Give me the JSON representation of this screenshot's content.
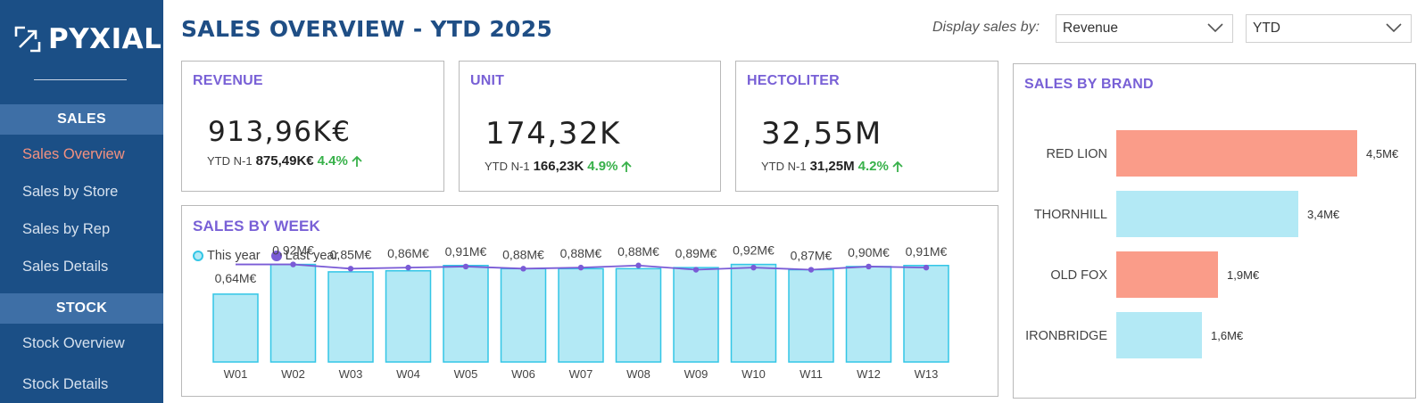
{
  "brand": {
    "name": "PYXIAL"
  },
  "sidebar": {
    "sections": [
      {
        "title": "SALES",
        "items": [
          "Sales Overview",
          "Sales by Store",
          "Sales by Rep",
          "Sales Details"
        ]
      },
      {
        "title": "STOCK",
        "items": [
          "Stock Overview",
          "Stock Details"
        ]
      }
    ],
    "active_item": "Sales Overview"
  },
  "header": {
    "title": "SALES OVERVIEW - YTD 2025",
    "display_label": "Display sales by:",
    "measure_select": "Revenue",
    "period_select": "YTD"
  },
  "kpis": [
    {
      "title": "REVENUE",
      "value": "913,96K€",
      "prev_label": "YTD N-1",
      "prev_value": "875,49K€",
      "change": "4.4%",
      "trend": "up"
    },
    {
      "title": "UNIT",
      "value": "174,32K",
      "prev_label": "YTD N-1",
      "prev_value": "166,23K",
      "change": "4.9%",
      "trend": "up"
    },
    {
      "title": "HECTOLITER",
      "value": "32,55M",
      "prev_label": "YTD N-1",
      "prev_value": "31,25M",
      "change": "4.2%",
      "trend": "up"
    }
  ],
  "colors": {
    "sidebar_bg": "#1b4f86",
    "section_bg": "#3e6fa6",
    "accent_title": "#7860d6",
    "this_year": "#b3e9f5",
    "this_year_stroke": "#33c6e6",
    "last_year": "#7a5bd6",
    "positive": "#38b14a",
    "brand_salmon": "#fa9c89",
    "brand_cyan": "#b3e9f5"
  },
  "chart_data": [
    {
      "type": "bar",
      "title": "SALES BY WEEK",
      "categories": [
        "W01",
        "W02",
        "W03",
        "W04",
        "W05",
        "W06",
        "W07",
        "W08",
        "W09",
        "W10",
        "W11",
        "W12",
        "W13"
      ],
      "series": [
        {
          "name": "This year",
          "kind": "bar",
          "values": [
            0.64,
            0.92,
            0.85,
            0.86,
            0.91,
            0.88,
            0.88,
            0.88,
            0.89,
            0.92,
            0.87,
            0.9,
            0.91
          ]
        },
        {
          "name": "Last year",
          "kind": "line",
          "values": [
            0.92,
            0.92,
            0.88,
            0.89,
            0.9,
            0.88,
            0.89,
            0.91,
            0.87,
            0.89,
            0.87,
            0.9,
            0.89
          ]
        }
      ],
      "data_labels": [
        "0,64M€",
        "0,92M€",
        "0,85M€",
        "0,86M€",
        "0,91M€",
        "0,88M€",
        "0,88M€",
        "0,88M€",
        "0,89M€",
        "0,92M€",
        "0,87M€",
        "0,90M€",
        "0,91M€"
      ],
      "ylim": [
        0,
        0.95
      ],
      "legend": "top-left",
      "grid": false
    },
    {
      "type": "bar",
      "orientation": "horizontal",
      "title": "SALES BY BRAND",
      "categories": [
        "RED LION",
        "THORNHILL",
        "OLD FOX",
        "IRONBRIDGE"
      ],
      "values": [
        4.5,
        3.4,
        1.9,
        1.6
      ],
      "data_labels": [
        "4,5M€",
        "3,4M€",
        "1,9M€",
        "1,6M€"
      ],
      "bar_colors": [
        "#fa9c89",
        "#b3e9f5",
        "#fa9c89",
        "#b3e9f5"
      ],
      "xlim": [
        0,
        4.5
      ],
      "grid": false
    }
  ]
}
